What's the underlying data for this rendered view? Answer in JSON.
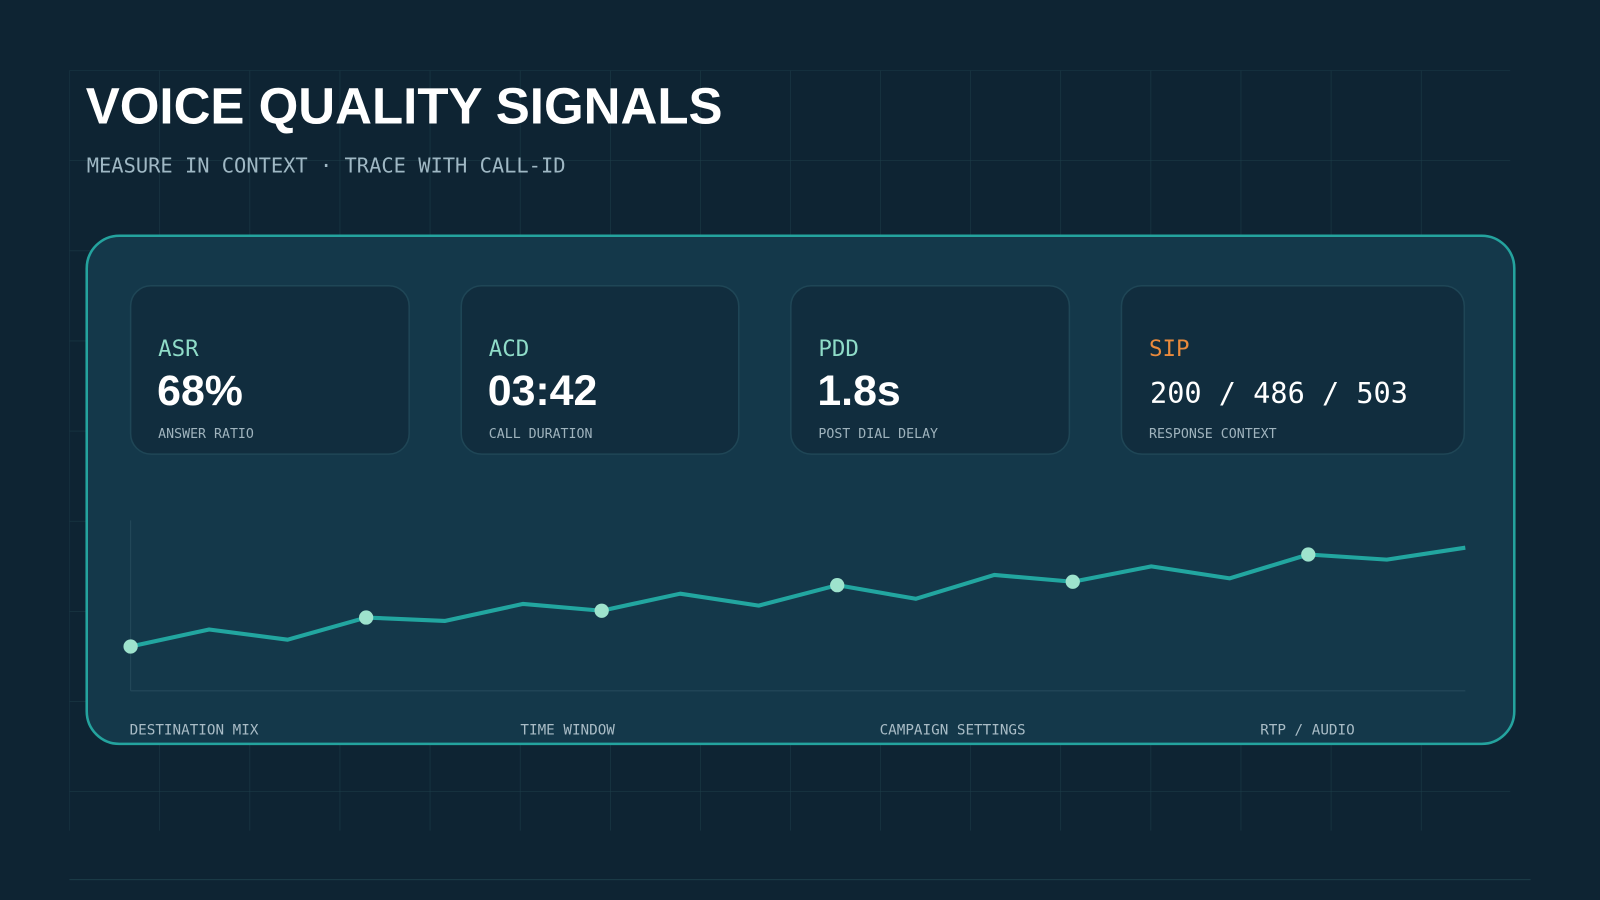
{
  "header": {
    "title": "VOICE QUALITY SIGNALS",
    "subtitle": "MEASURE IN CONTEXT · TRACE WITH CALL-ID"
  },
  "cards": [
    {
      "label": "ASR",
      "value": "68%",
      "caption": "ANSWER RATIO"
    },
    {
      "label": "ACD",
      "value": "03:42",
      "caption": "CALL DURATION"
    },
    {
      "label": "PDD",
      "value": "1.8s",
      "caption": "POST DIAL DELAY"
    },
    {
      "label": "SIP",
      "value": "200 / 486 / 503",
      "caption": "RESPONSE CONTEXT"
    }
  ],
  "chart_data": {
    "type": "line",
    "color": "#22a6a0",
    "values": [
      26,
      36,
      30,
      43,
      41,
      51,
      47,
      57,
      50,
      62,
      54,
      68,
      64,
      73,
      66,
      80,
      77,
      84
    ],
    "ylim": [
      0,
      100
    ]
  },
  "footer_labels": [
    "DESTINATION MIX",
    "TIME WINDOW",
    "CAMPAIGN SETTINGS",
    "RTP / AUDIO"
  ]
}
